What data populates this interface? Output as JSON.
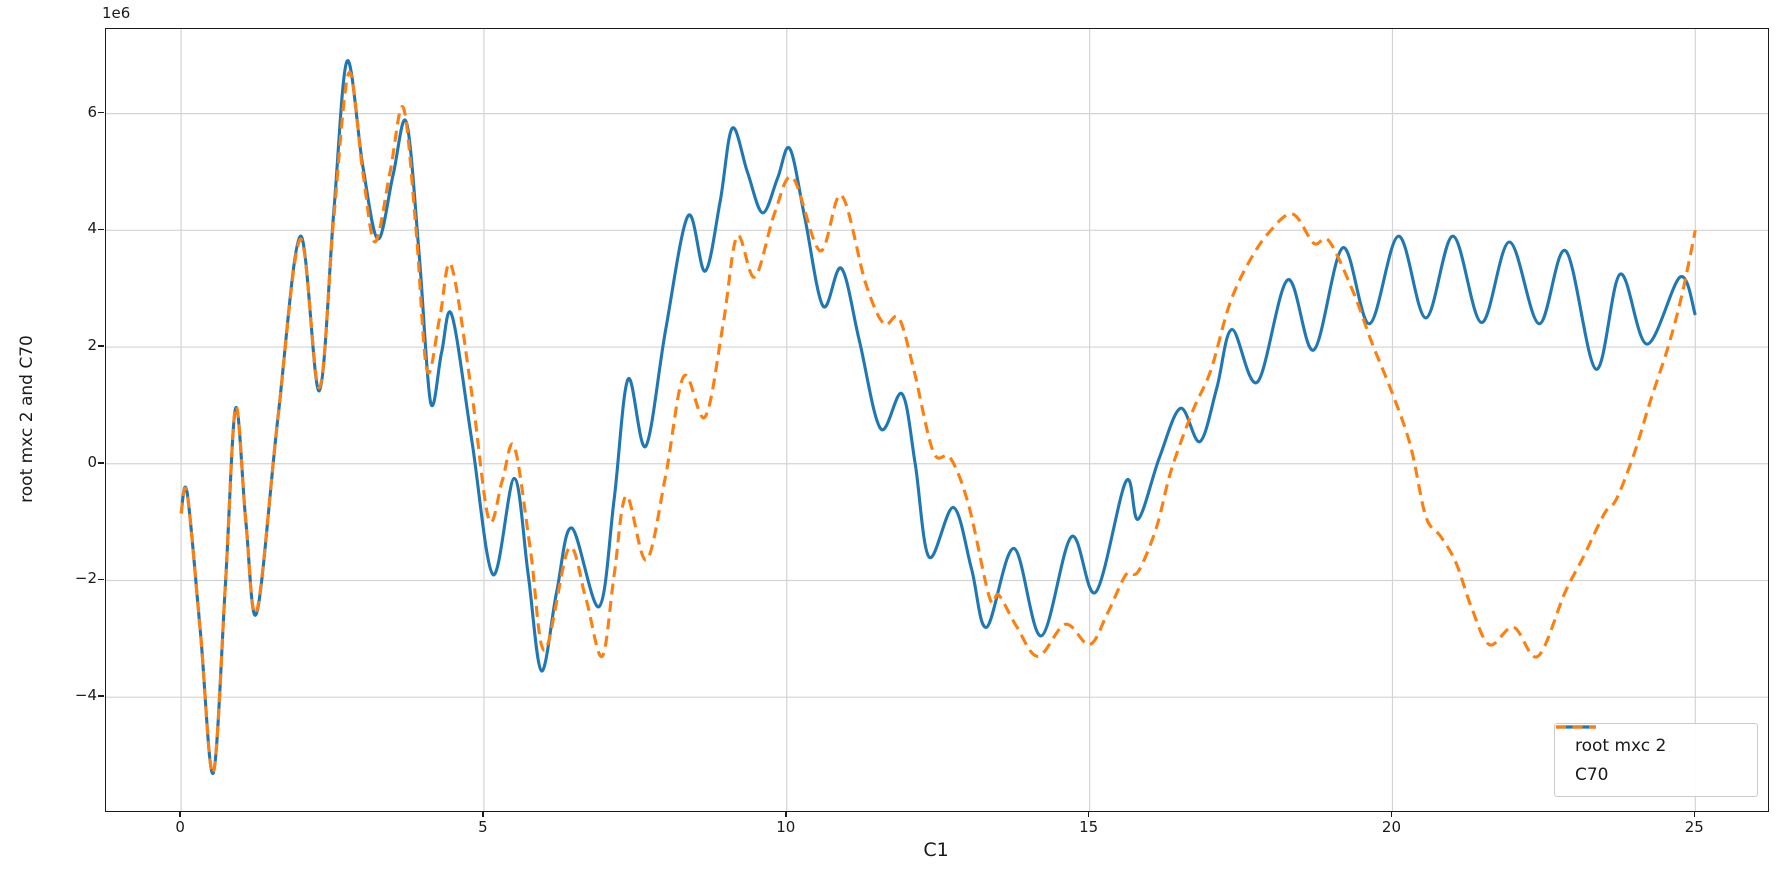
{
  "figure": {
    "background": "#ffffff",
    "grid_color": "#d4d4d4",
    "spine_color": "#1b1b1b",
    "tick_color": "#1b1b1b"
  },
  "chart_data": {
    "type": "line",
    "title": "",
    "xlabel": "C1",
    "ylabel": "root mxc 2 and C70",
    "y_offset_multiplier": "1e6",
    "y_unit": "1e6",
    "xlim": [
      -1.24,
      26.2
    ],
    "ylim": [
      -5.95,
      7.45
    ],
    "x_ticks": [
      0,
      5,
      10,
      15,
      20,
      25
    ],
    "y_ticks": [
      -4,
      -2,
      0,
      2,
      4,
      6
    ],
    "grid": true,
    "legend_position": "lower right",
    "series": [
      {
        "name": "root mxc 2",
        "color": "#1f77b4",
        "style": "solid",
        "points": [
          [
            0,
            -0.85
          ],
          [
            0.1,
            -0.5
          ],
          [
            0.32,
            -2.9
          ],
          [
            0.53,
            -5.3
          ],
          [
            0.73,
            -2.1
          ],
          [
            0.9,
            0.95
          ],
          [
            1.07,
            -1.0
          ],
          [
            1.25,
            -2.55
          ],
          [
            1.6,
            0.8
          ],
          [
            1.97,
            3.9
          ],
          [
            2.28,
            1.25
          ],
          [
            2.52,
            4.3
          ],
          [
            2.74,
            6.9
          ],
          [
            3.0,
            5.1
          ],
          [
            3.25,
            3.85
          ],
          [
            3.5,
            4.95
          ],
          [
            3.72,
            5.85
          ],
          [
            3.93,
            3.6
          ],
          [
            4.12,
            1.05
          ],
          [
            4.3,
            1.9
          ],
          [
            4.47,
            2.55
          ],
          [
            4.8,
            0.4
          ],
          [
            5.15,
            -1.9
          ],
          [
            5.5,
            -0.25
          ],
          [
            5.73,
            -1.9
          ],
          [
            5.95,
            -3.55
          ],
          [
            6.2,
            -2.2
          ],
          [
            6.45,
            -1.1
          ],
          [
            6.9,
            -2.45
          ],
          [
            7.15,
            -0.6
          ],
          [
            7.38,
            1.45
          ],
          [
            7.67,
            0.3
          ],
          [
            8.0,
            2.3
          ],
          [
            8.37,
            4.25
          ],
          [
            8.65,
            3.3
          ],
          [
            8.9,
            4.5
          ],
          [
            9.1,
            5.75
          ],
          [
            9.35,
            5.0
          ],
          [
            9.6,
            4.3
          ],
          [
            9.85,
            4.9
          ],
          [
            10.05,
            5.4
          ],
          [
            10.3,
            4.2
          ],
          [
            10.6,
            2.7
          ],
          [
            10.9,
            3.35
          ],
          [
            11.2,
            2.1
          ],
          [
            11.55,
            0.6
          ],
          [
            11.9,
            1.2
          ],
          [
            12.12,
            0.0
          ],
          [
            12.35,
            -1.6
          ],
          [
            12.75,
            -0.75
          ],
          [
            13.05,
            -1.8
          ],
          [
            13.3,
            -2.8
          ],
          [
            13.75,
            -1.45
          ],
          [
            14.2,
            -2.95
          ],
          [
            14.7,
            -1.25
          ],
          [
            15.1,
            -2.2
          ],
          [
            15.6,
            -0.3
          ],
          [
            15.8,
            -0.95
          ],
          [
            16.15,
            0.1
          ],
          [
            16.5,
            0.95
          ],
          [
            16.82,
            0.38
          ],
          [
            17.1,
            1.3
          ],
          [
            17.35,
            2.3
          ],
          [
            17.77,
            1.4
          ],
          [
            18.27,
            3.15
          ],
          [
            18.7,
            1.95
          ],
          [
            19.18,
            3.7
          ],
          [
            19.62,
            2.4
          ],
          [
            20.1,
            3.9
          ],
          [
            20.55,
            2.5
          ],
          [
            21.0,
            3.9
          ],
          [
            21.47,
            2.42
          ],
          [
            21.93,
            3.8
          ],
          [
            22.42,
            2.4
          ],
          [
            22.86,
            3.65
          ],
          [
            23.36,
            1.62
          ],
          [
            23.76,
            3.25
          ],
          [
            24.2,
            2.05
          ],
          [
            24.75,
            3.2
          ],
          [
            25.0,
            2.55
          ]
        ]
      },
      {
        "name": "C70",
        "color": "#ff7f0e",
        "style": "dashed",
        "points": [
          [
            0,
            -0.85
          ],
          [
            0.1,
            -0.52
          ],
          [
            0.32,
            -2.9
          ],
          [
            0.53,
            -5.3
          ],
          [
            0.73,
            -2.1
          ],
          [
            0.9,
            0.97
          ],
          [
            1.07,
            -1.0
          ],
          [
            1.25,
            -2.52
          ],
          [
            1.6,
            0.8
          ],
          [
            1.97,
            3.85
          ],
          [
            2.28,
            1.3
          ],
          [
            2.52,
            4.2
          ],
          [
            2.77,
            6.7
          ],
          [
            3.0,
            5.0
          ],
          [
            3.2,
            3.8
          ],
          [
            3.45,
            5.0
          ],
          [
            3.67,
            6.1
          ],
          [
            3.88,
            4.0
          ],
          [
            4.06,
            1.6
          ],
          [
            4.27,
            2.5
          ],
          [
            4.46,
            3.4
          ],
          [
            4.8,
            1.2
          ],
          [
            5.08,
            -0.95
          ],
          [
            5.3,
            -0.3
          ],
          [
            5.5,
            0.3
          ],
          [
            5.77,
            -1.5
          ],
          [
            6.0,
            -3.2
          ],
          [
            6.4,
            -1.45
          ],
          [
            6.68,
            -2.3
          ],
          [
            6.95,
            -3.3
          ],
          [
            7.15,
            -1.9
          ],
          [
            7.35,
            -0.55
          ],
          [
            7.68,
            -1.65
          ],
          [
            8.0,
            -0.2
          ],
          [
            8.3,
            1.5
          ],
          [
            8.65,
            0.8
          ],
          [
            8.95,
            2.4
          ],
          [
            9.18,
            3.9
          ],
          [
            9.47,
            3.2
          ],
          [
            9.8,
            4.3
          ],
          [
            10.1,
            4.9
          ],
          [
            10.55,
            3.65
          ],
          [
            10.9,
            4.6
          ],
          [
            11.3,
            3.1
          ],
          [
            11.6,
            2.4
          ],
          [
            11.85,
            2.5
          ],
          [
            12.1,
            1.6
          ],
          [
            12.42,
            0.2
          ],
          [
            12.7,
            0.1
          ],
          [
            13.0,
            -0.7
          ],
          [
            13.35,
            -2.3
          ],
          [
            13.5,
            -2.25
          ],
          [
            13.8,
            -2.8
          ],
          [
            14.15,
            -3.3
          ],
          [
            14.6,
            -2.75
          ],
          [
            15.0,
            -3.1
          ],
          [
            15.3,
            -2.55
          ],
          [
            15.6,
            -1.9
          ],
          [
            15.8,
            -1.85
          ],
          [
            16.1,
            -1.1
          ],
          [
            16.35,
            -0.1
          ],
          [
            16.7,
            0.9
          ],
          [
            17.0,
            1.6
          ],
          [
            17.3,
            2.7
          ],
          [
            17.6,
            3.4
          ],
          [
            17.95,
            3.95
          ],
          [
            18.35,
            4.28
          ],
          [
            18.7,
            3.78
          ],
          [
            18.95,
            3.82
          ],
          [
            19.35,
            2.95
          ],
          [
            19.65,
            2.1
          ],
          [
            20.0,
            1.2
          ],
          [
            20.3,
            0.3
          ],
          [
            20.55,
            -0.9
          ],
          [
            20.8,
            -1.25
          ],
          [
            21.05,
            -1.7
          ],
          [
            21.3,
            -2.45
          ],
          [
            21.6,
            -3.1
          ],
          [
            22.0,
            -2.8
          ],
          [
            22.4,
            -3.3
          ],
          [
            22.85,
            -2.2
          ],
          [
            23.15,
            -1.6
          ],
          [
            23.5,
            -0.85
          ],
          [
            23.7,
            -0.6
          ],
          [
            24.0,
            0.2
          ],
          [
            24.25,
            1.05
          ],
          [
            24.55,
            2.0
          ],
          [
            24.78,
            2.9
          ],
          [
            25.0,
            4.0
          ]
        ]
      }
    ]
  }
}
